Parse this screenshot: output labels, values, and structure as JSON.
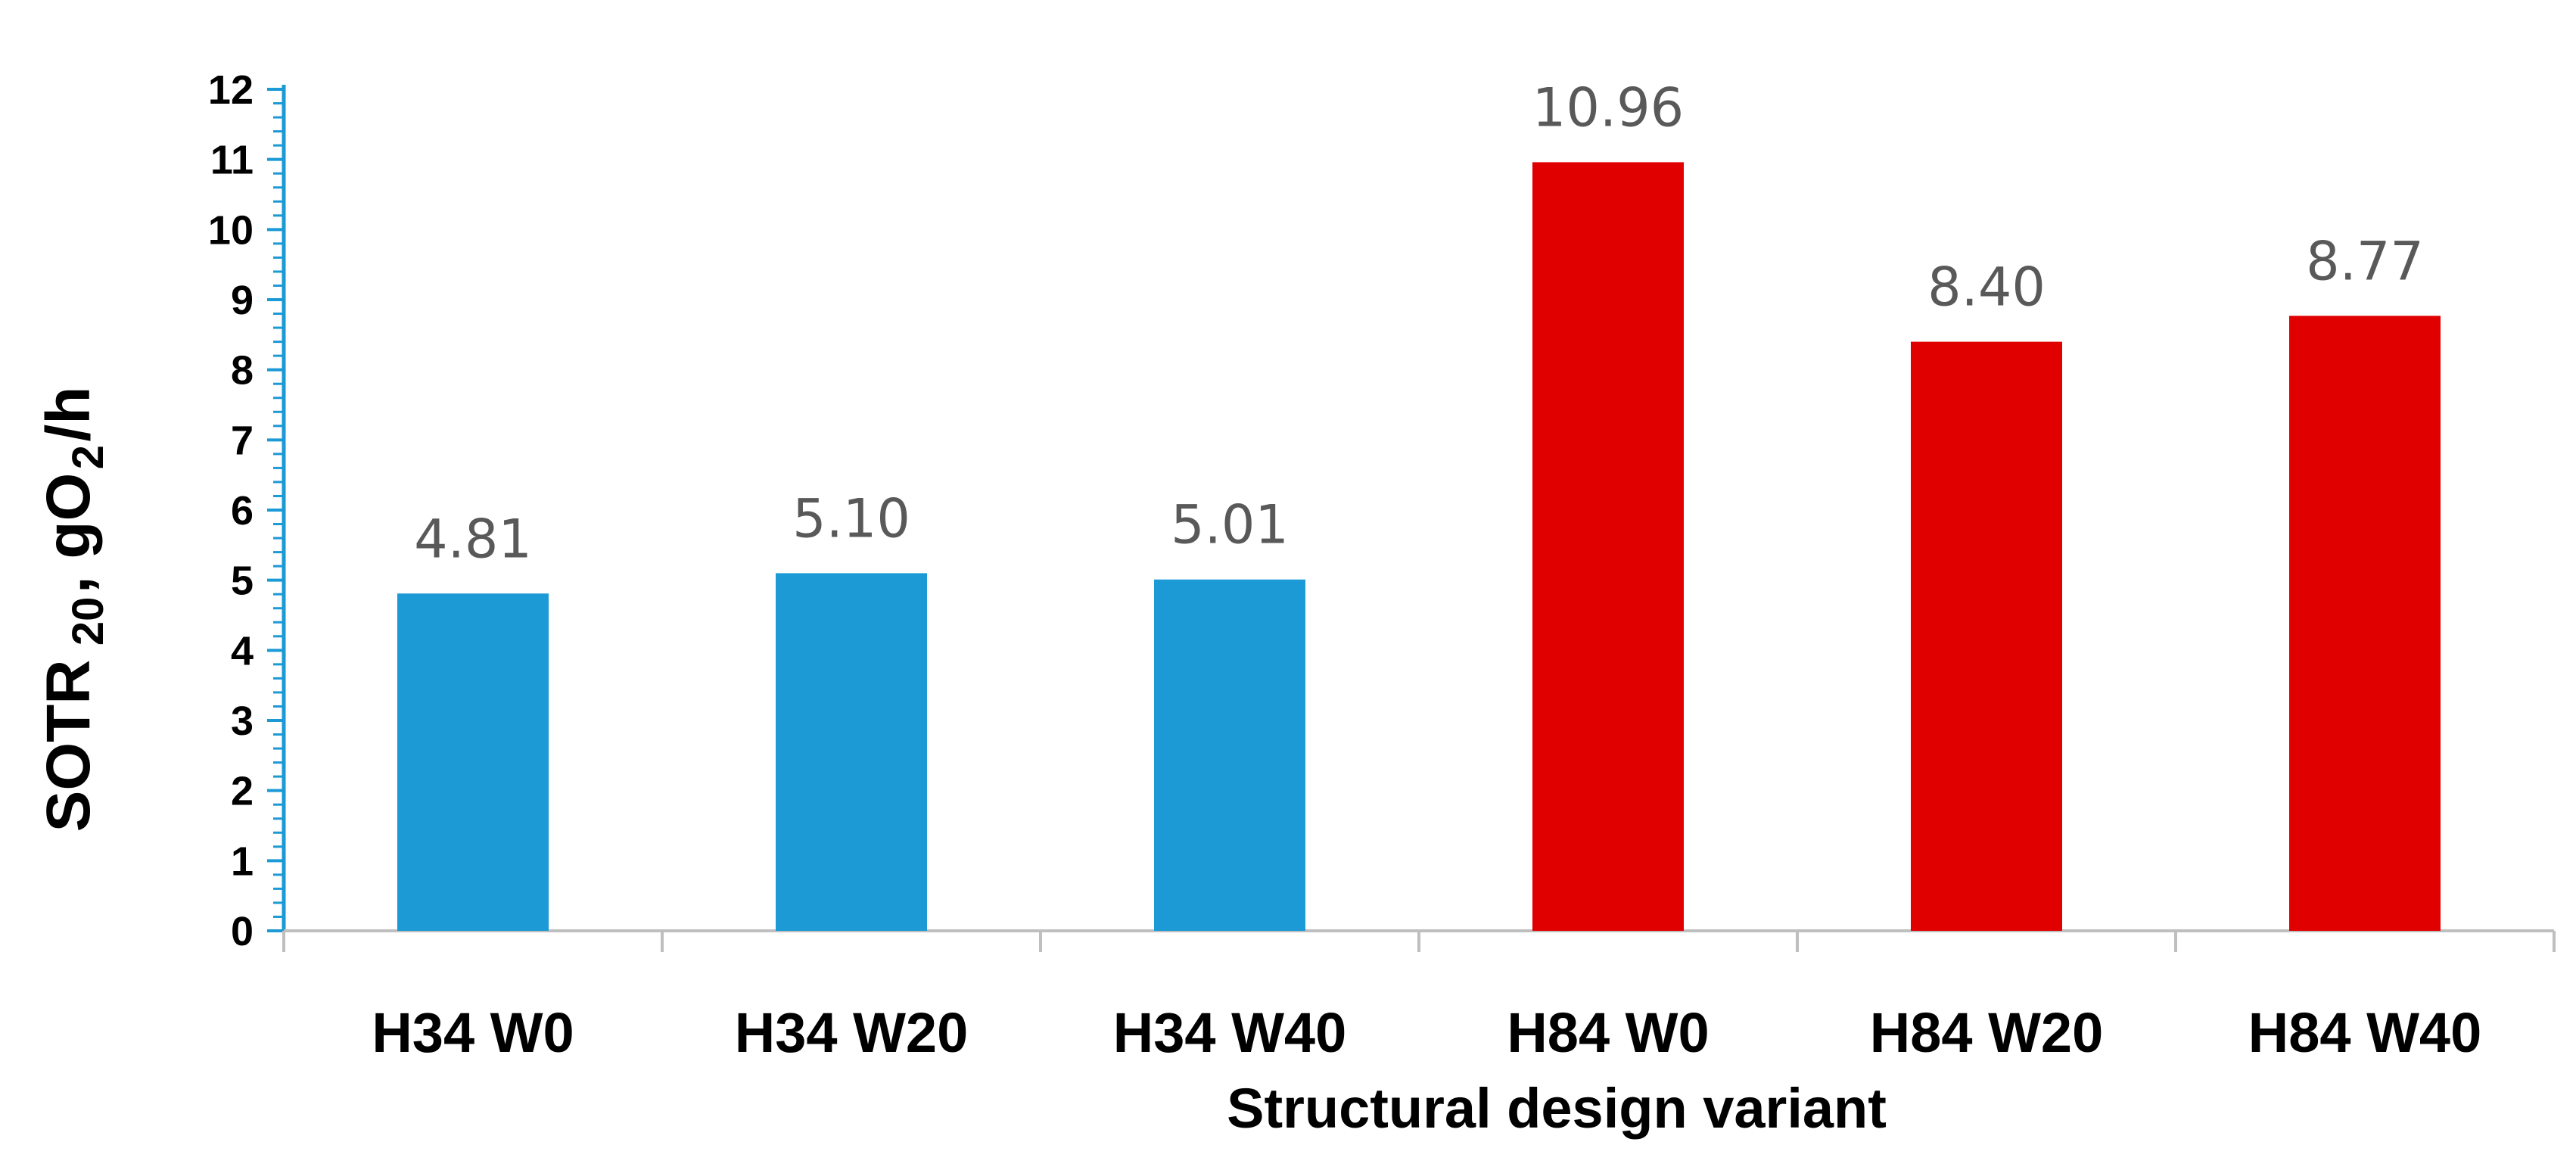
{
  "chart_data": {
    "type": "bar",
    "categories": [
      "H34 W0",
      "H34 W20",
      "H34 W40",
      "H84 W0",
      "H84 W20",
      "H84 W40"
    ],
    "values": [
      4.81,
      5.1,
      5.01,
      10.96,
      8.4,
      8.77
    ],
    "data_labels": [
      "4.81",
      "5.10",
      "5.01",
      "10.96",
      "8.40",
      "8.77"
    ],
    "bar_colors": [
      "#1b9ad6",
      "#1b9ad6",
      "#1b9ad6",
      "#e00000",
      "#e00000",
      "#e00000"
    ],
    "xlabel": "Structural design variant",
    "ylabel": {
      "main": "SOTR",
      "sub": "20",
      "unit_start": ", gO",
      "unit_sub": "2",
      "unit_end": "/h"
    },
    "ylim": [
      0,
      12
    ],
    "yticks": [
      0,
      1,
      2,
      3,
      4,
      5,
      6,
      7,
      8,
      9,
      10,
      11,
      12
    ],
    "grid": false,
    "legend": "none",
    "axis_color": "#1b9ad6",
    "x_axis_color": "#bfbfbf"
  }
}
